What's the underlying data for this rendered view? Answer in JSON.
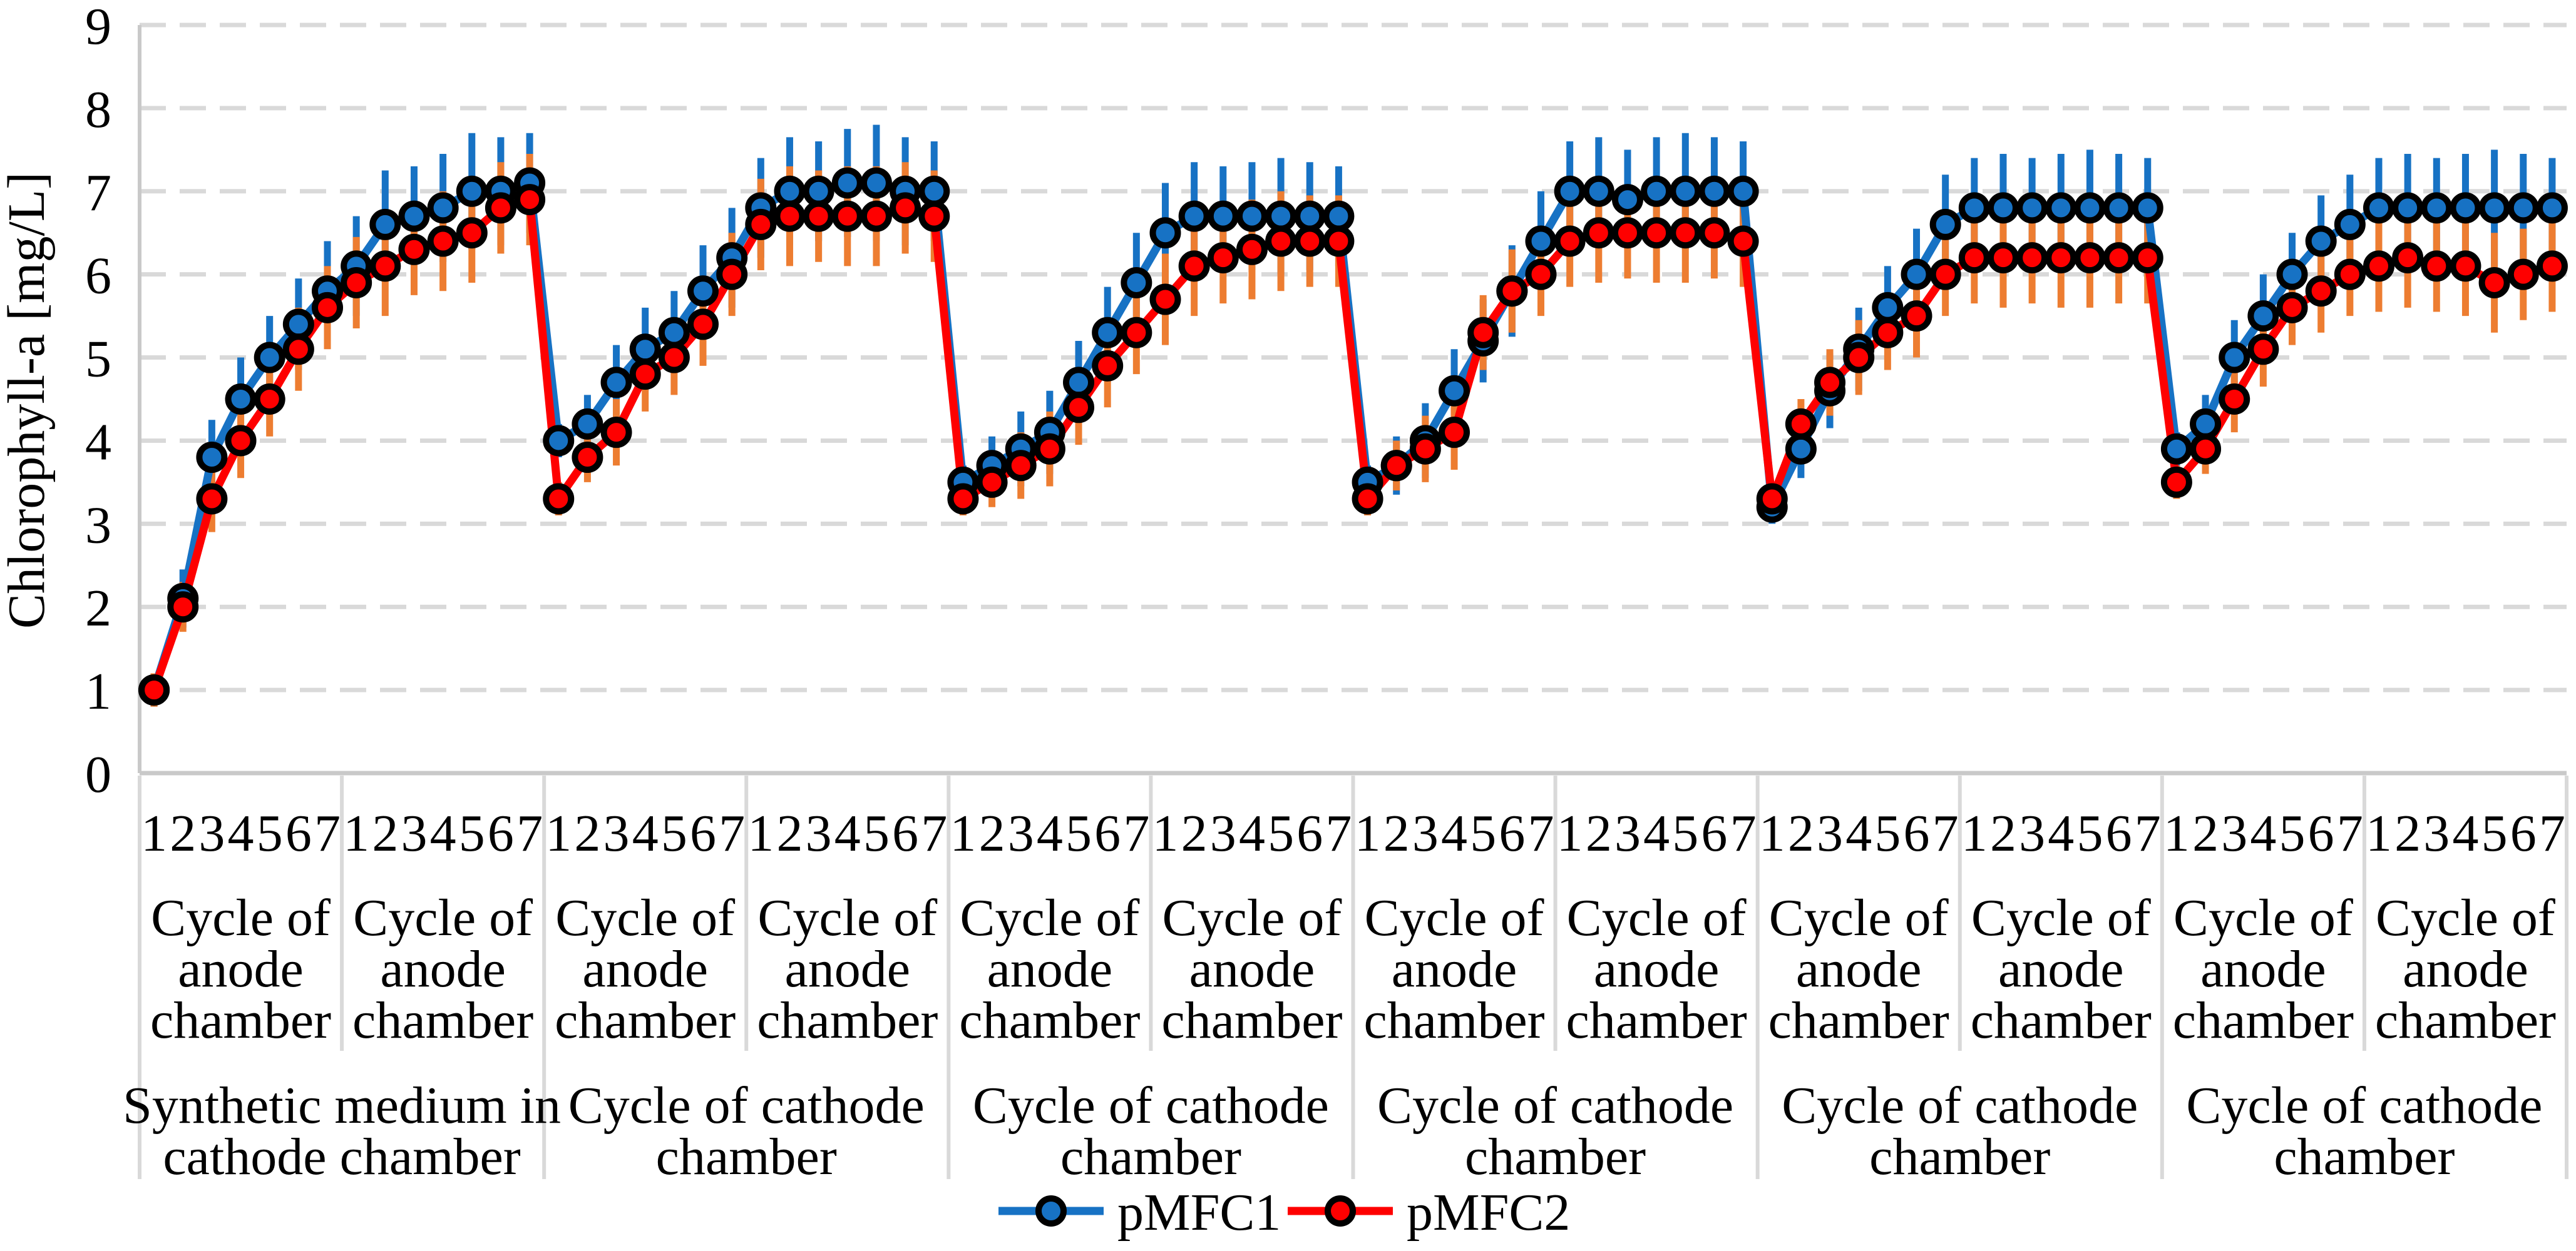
{
  "y_axis": {
    "title": "Chlorophyll-a [mg/L]",
    "ticks": [
      0,
      1,
      2,
      3,
      4,
      5,
      6,
      7,
      8,
      9
    ],
    "min": 0,
    "max": 9
  },
  "legend": {
    "items": [
      {
        "label": "pMFC1",
        "color": "#1772C4"
      },
      {
        "label": "pMFC2",
        "color": "#FE0000"
      }
    ]
  },
  "colors": {
    "series1_blue": "#1772C4",
    "series2_red": "#FE0000",
    "error_bar_blue": "#1772C4",
    "error_bar_orange": "#ED7D31",
    "gridline_gray": "#D9D9D9",
    "axis_gray": "#C9C9C9",
    "marker_outline": "#000000"
  },
  "chart_data": {
    "type": "line",
    "title": "",
    "xlabel": "",
    "ylabel": "Chlorophyll-a [mg/L]",
    "ylim": [
      0,
      9
    ],
    "grid": "horizontal-dashed",
    "legend_position": "bottom-center",
    "groups": 12,
    "points_per_group": 7,
    "x_tick_labels": [
      "1",
      "2",
      "3",
      "4",
      "5",
      "6",
      "7"
    ],
    "anode_group_labels": [
      {
        "text": "Cycle of anode chamber",
        "lines": [
          "Cycle of",
          "anode",
          "chamber"
        ]
      },
      {
        "text": "Cycle of anode chamber",
        "lines": [
          "Cycle of",
          "anode",
          "chamber"
        ]
      },
      {
        "text": "Cycle of anode chamber",
        "lines": [
          "Cycle of",
          "anode",
          "chamber"
        ]
      },
      {
        "text": "Cycle of anode chamber",
        "lines": [
          "Cycle of",
          "anode",
          "chamber"
        ]
      },
      {
        "text": "Cycle of anode chamber",
        "lines": [
          "Cycle of",
          "anode",
          "chamber"
        ]
      },
      {
        "text": "Cycle of anode chamber",
        "lines": [
          "Cycle of",
          "anode",
          "chamber"
        ]
      },
      {
        "text": "Cycle of anode chamber",
        "lines": [
          "Cycle of",
          "anode",
          "chamber"
        ]
      },
      {
        "text": "Cycle of anode chamber",
        "lines": [
          "Cycle of",
          "anode",
          "chamber"
        ]
      },
      {
        "text": "Cycle of anode chamber",
        "lines": [
          "Cycle of",
          "anode",
          "chamber"
        ]
      },
      {
        "text": "Cycle of anode chamber",
        "lines": [
          "Cycle of",
          "anode",
          "chamber"
        ]
      },
      {
        "text": "Cycle of anode chamber",
        "lines": [
          "Cycle of",
          "anode",
          "chamber"
        ]
      },
      {
        "text": "Cycle of anode chamber",
        "lines": [
          "Cycle of",
          "anode",
          "chamber"
        ]
      }
    ],
    "cathode_section_labels": [
      {
        "text": "Synthetic medium in cathode chamber",
        "lines": [
          "Synthetic medium in",
          "cathode chamber"
        ]
      },
      {
        "text": "Cycle of cathode chamber",
        "lines": [
          "Cycle of cathode",
          "chamber"
        ]
      },
      {
        "text": "Cycle of cathode chamber",
        "lines": [
          "Cycle of cathode",
          "chamber"
        ]
      },
      {
        "text": "Cycle of cathode chamber",
        "lines": [
          "Cycle of cathode",
          "chamber"
        ]
      },
      {
        "text": "Cycle of cathode chamber",
        "lines": [
          "Cycle of cathode",
          "chamber"
        ]
      },
      {
        "text": "Cycle of cathode chamber",
        "lines": [
          "Cycle of cathode",
          "chamber"
        ]
      }
    ],
    "series": [
      {
        "name": "pMFC1",
        "color": "#1772C4",
        "error_color": "#1772C4",
        "values": [
          1.0,
          2.1,
          3.8,
          4.5,
          5.0,
          5.4,
          5.8,
          6.1,
          6.6,
          6.7,
          6.8,
          7.0,
          7.0,
          7.1,
          4.0,
          4.2,
          4.7,
          5.1,
          5.3,
          5.8,
          6.2,
          6.8,
          7.0,
          7.0,
          7.1,
          7.1,
          7.0,
          7.0,
          3.5,
          3.7,
          3.9,
          4.1,
          4.7,
          5.3,
          5.9,
          6.5,
          6.7,
          6.7,
          6.7,
          6.7,
          6.7,
          6.7,
          3.5,
          3.7,
          4.0,
          4.6,
          5.2,
          5.8,
          6.4,
          7.0,
          7.0,
          6.9,
          7.0,
          7.0,
          7.0,
          7.0,
          3.2,
          3.9,
          4.6,
          5.1,
          5.6,
          6.0,
          6.6,
          6.8,
          6.8,
          6.8,
          6.8,
          6.8,
          6.8,
          6.8,
          3.9,
          4.2,
          5.0,
          5.5,
          6.0,
          6.4,
          6.6,
          6.8,
          6.8,
          6.8,
          6.8,
          6.8,
          6.8,
          6.8
        ],
        "errors": [
          0.2,
          0.35,
          0.45,
          0.5,
          0.5,
          0.55,
          0.6,
          0.6,
          0.65,
          0.6,
          0.65,
          0.7,
          0.65,
          0.6,
          0.2,
          0.35,
          0.45,
          0.5,
          0.5,
          0.55,
          0.6,
          0.6,
          0.65,
          0.6,
          0.65,
          0.7,
          0.65,
          0.6,
          0.2,
          0.35,
          0.45,
          0.5,
          0.5,
          0.55,
          0.6,
          0.6,
          0.65,
          0.6,
          0.65,
          0.7,
          0.65,
          0.6,
          0.2,
          0.35,
          0.45,
          0.5,
          0.5,
          0.55,
          0.6,
          0.6,
          0.65,
          0.6,
          0.65,
          0.7,
          0.65,
          0.6,
          0.2,
          0.35,
          0.45,
          0.5,
          0.5,
          0.55,
          0.6,
          0.6,
          0.65,
          0.6,
          0.65,
          0.7,
          0.65,
          0.6,
          0.2,
          0.35,
          0.45,
          0.5,
          0.5,
          0.55,
          0.6,
          0.6,
          0.65,
          0.6,
          0.65,
          0.7,
          0.65,
          0.6
        ]
      },
      {
        "name": "pMFC2",
        "color": "#FE0000",
        "error_color": "#ED7D31",
        "values": [
          1.0,
          2.0,
          3.3,
          4.0,
          4.5,
          5.1,
          5.6,
          5.9,
          6.1,
          6.3,
          6.4,
          6.5,
          6.8,
          6.9,
          3.3,
          3.8,
          4.1,
          4.8,
          5.0,
          5.4,
          6.0,
          6.6,
          6.7,
          6.7,
          6.7,
          6.7,
          6.8,
          6.7,
          3.3,
          3.5,
          3.7,
          3.9,
          4.4,
          4.9,
          5.3,
          5.7,
          6.1,
          6.2,
          6.3,
          6.4,
          6.4,
          6.4,
          3.3,
          3.7,
          3.9,
          4.1,
          5.3,
          5.8,
          6.0,
          6.4,
          6.5,
          6.5,
          6.5,
          6.5,
          6.5,
          6.4,
          3.3,
          4.2,
          4.7,
          5.0,
          5.3,
          5.5,
          6.0,
          6.2,
          6.2,
          6.2,
          6.2,
          6.2,
          6.2,
          6.2,
          3.5,
          3.9,
          4.5,
          5.1,
          5.6,
          5.8,
          6.0,
          6.1,
          6.2,
          6.1,
          6.1,
          5.9,
          6.0,
          6.1
        ],
        "errors": [
          0.2,
          0.3,
          0.4,
          0.45,
          0.45,
          0.5,
          0.5,
          0.55,
          0.6,
          0.55,
          0.6,
          0.6,
          0.55,
          0.55,
          0.2,
          0.3,
          0.4,
          0.45,
          0.45,
          0.5,
          0.5,
          0.55,
          0.6,
          0.55,
          0.6,
          0.6,
          0.55,
          0.55,
          0.2,
          0.3,
          0.4,
          0.45,
          0.45,
          0.5,
          0.5,
          0.55,
          0.6,
          0.55,
          0.6,
          0.6,
          0.55,
          0.55,
          0.2,
          0.3,
          0.4,
          0.45,
          0.45,
          0.5,
          0.5,
          0.55,
          0.6,
          0.55,
          0.6,
          0.6,
          0.55,
          0.55,
          0.2,
          0.3,
          0.4,
          0.45,
          0.45,
          0.5,
          0.5,
          0.55,
          0.6,
          0.55,
          0.6,
          0.6,
          0.55,
          0.55,
          0.2,
          0.3,
          0.4,
          0.45,
          0.45,
          0.5,
          0.5,
          0.55,
          0.6,
          0.55,
          0.6,
          0.6,
          0.55,
          0.55
        ]
      }
    ]
  }
}
